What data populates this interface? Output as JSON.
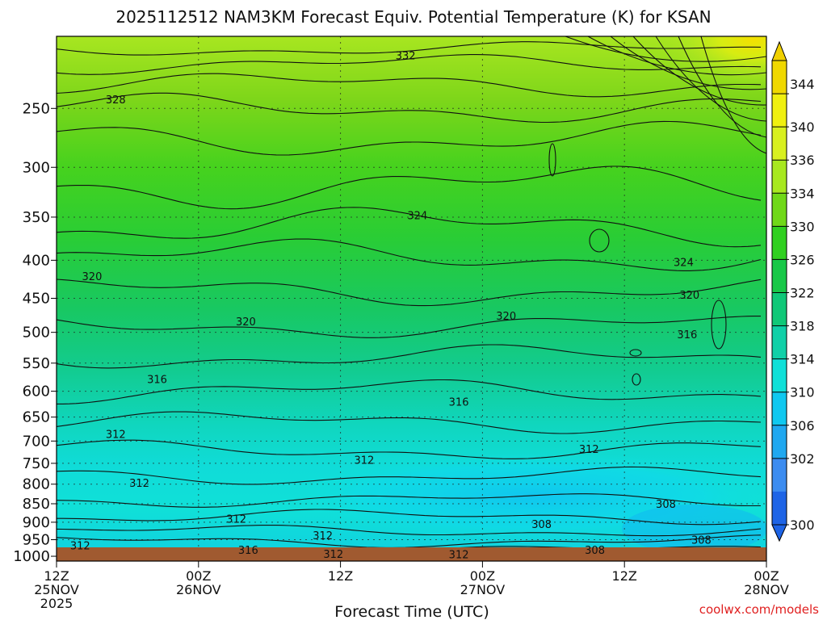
{
  "chart_data": {
    "type": "heatmap",
    "title": "2025112512 NAM3KM Forecast Equiv. Potential Temperature (K) for KSAN",
    "xlabel": "Forecast Time (UTC)",
    "ylabel": "",
    "watermark": "coolwx.com/models",
    "x_ticks": [
      {
        "hour": 0,
        "l1": "12Z",
        "l2": "25NOV",
        "l3": "2025"
      },
      {
        "hour": 12,
        "l1": "00Z",
        "l2": "26NOV",
        "l3": ""
      },
      {
        "hour": 24,
        "l1": "12Z",
        "l2": "",
        "l3": ""
      },
      {
        "hour": 36,
        "l1": "00Z",
        "l2": "27NOV",
        "l3": ""
      },
      {
        "hour": 48,
        "l1": "12Z",
        "l2": "",
        "l3": ""
      },
      {
        "hour": 60,
        "l1": "00Z",
        "l2": "28NOV",
        "l3": ""
      }
    ],
    "y_ticks": [
      250,
      300,
      350,
      400,
      450,
      500,
      550,
      600,
      650,
      700,
      750,
      800,
      850,
      900,
      950,
      1000
    ],
    "y_range": [
      200,
      1015
    ],
    "y_scale": "log",
    "x_range": [
      0,
      60
    ],
    "colorbar": {
      "labels": [
        344,
        340,
        336,
        334,
        330,
        326,
        322,
        318,
        314,
        310,
        306,
        302,
        300
      ],
      "colors": [
        "#f0d800",
        "#f0f010",
        "#d8f020",
        "#a8e820",
        "#70d818",
        "#30d020",
        "#18c848",
        "#10c878",
        "#10d0a8",
        "#10e0d8",
        "#10c8f0",
        "#20a8f0",
        "#3c8cf0",
        "#1e64e6"
      ]
    },
    "contour_labels": [
      {
        "text": "332",
        "hour": 29.5,
        "p": 212
      },
      {
        "text": "328",
        "hour": 5,
        "p": 243
      },
      {
        "text": "324",
        "hour": 30.5,
        "p": 348
      },
      {
        "text": "324",
        "hour": 53,
        "p": 402
      },
      {
        "text": "320",
        "hour": 3,
        "p": 420
      },
      {
        "text": "320",
        "hour": 16,
        "p": 483
      },
      {
        "text": "320",
        "hour": 38,
        "p": 475
      },
      {
        "text": "320",
        "hour": 53.5,
        "p": 445
      },
      {
        "text": "316",
        "hour": 53.3,
        "p": 503
      },
      {
        "text": "316",
        "hour": 8.5,
        "p": 578
      },
      {
        "text": "316",
        "hour": 34,
        "p": 620
      },
      {
        "text": "312",
        "hour": 5,
        "p": 685
      },
      {
        "text": "312",
        "hour": 26,
        "p": 742
      },
      {
        "text": "312",
        "hour": 45,
        "p": 717
      },
      {
        "text": "312",
        "hour": 7,
        "p": 797
      },
      {
        "text": "312",
        "hour": 15.2,
        "p": 890
      },
      {
        "text": "312",
        "hour": 22.5,
        "p": 937
      },
      {
        "text": "312",
        "hour": 2,
        "p": 967
      },
      {
        "text": "316",
        "hour": 16.2,
        "p": 980
      },
      {
        "text": "312",
        "hour": 23.4,
        "p": 992
      },
      {
        "text": "312",
        "hour": 34,
        "p": 994
      },
      {
        "text": "308",
        "hour": 51.5,
        "p": 850
      },
      {
        "text": "308",
        "hour": 41,
        "p": 905
      },
      {
        "text": "308",
        "hour": 45.5,
        "p": 980
      },
      {
        "text": "308",
        "hour": 54.5,
        "p": 950
      }
    ]
  }
}
